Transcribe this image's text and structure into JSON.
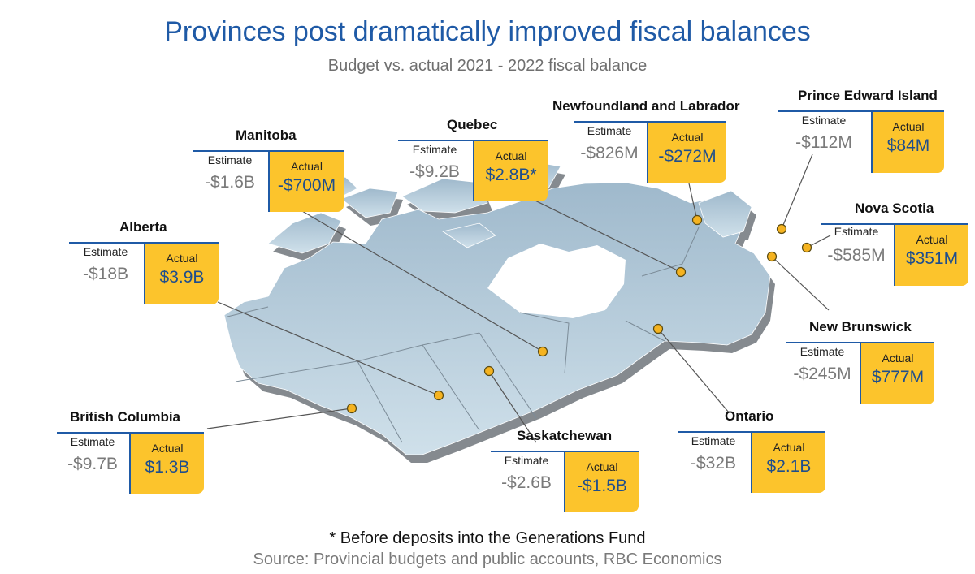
{
  "title": "Provinces post dramatically improved fiscal balances",
  "subtitle": "Budget vs. actual 2021 - 2022 fiscal balance",
  "footnote": "* Before deposits into the Generations Fund",
  "source": "Source: Provincial budgets and public accounts, RBC Economics",
  "column_labels": {
    "estimate": "Estimate",
    "actual": "Actual"
  },
  "colors": {
    "title": "#1f5aa6",
    "accent": "#fcc42c",
    "map_fill": "#b9d0df",
    "map_shadow": "#8a8f94",
    "marker": "#f5b320"
  },
  "provinces": {
    "manitoba": {
      "name": "Manitoba",
      "estimate": "-$1.6B",
      "actual": "-$700M"
    },
    "quebec": {
      "name": "Quebec",
      "estimate": "-$9.2B",
      "actual": "$2.8B*"
    },
    "newfoundland": {
      "name": "Newfoundland and Labrador",
      "estimate": "-$826M",
      "actual": "-$272M"
    },
    "pei": {
      "name": "Prince Edward Island",
      "estimate": "-$112M",
      "actual": "$84M"
    },
    "alberta": {
      "name": "Alberta",
      "estimate": "-$18B",
      "actual": "$3.9B"
    },
    "nova_scotia": {
      "name": "Nova Scotia",
      "estimate": "-$585M",
      "actual": "$351M"
    },
    "new_brunswick": {
      "name": "New Brunswick",
      "estimate": "-$245M",
      "actual": "$777M"
    },
    "british_columbia": {
      "name": "British Columbia",
      "estimate": "-$9.7B",
      "actual": "$1.3B"
    },
    "saskatchewan": {
      "name": "Saskatchewan",
      "estimate": "-$2.6B",
      "actual": "-$1.5B"
    },
    "ontario": {
      "name": "Ontario",
      "estimate": "-$32B",
      "actual": "$2.1B"
    }
  }
}
